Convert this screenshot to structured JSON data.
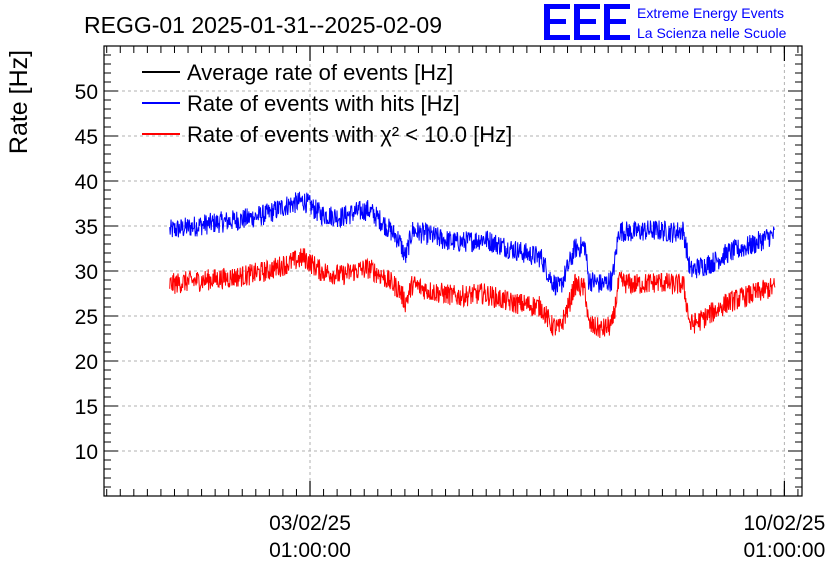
{
  "header": {
    "title": "REGG-01 2025-01-31--2025-02-09",
    "logo": {
      "mark": "EEE",
      "line1": "Extreme Energy Events",
      "line2": "La Scienza nelle Scuole",
      "color": "#0000ff"
    }
  },
  "chart_data": {
    "type": "line",
    "title": "REGG-01 2025-01-31--2025-02-09",
    "xlabel": "",
    "ylabel": "Rate [Hz]",
    "ylim": [
      5,
      55
    ],
    "yticks": [
      10,
      15,
      20,
      25,
      30,
      35,
      40,
      45,
      50
    ],
    "xlim": [
      0,
      10.3
    ],
    "xunit": "days since 2025-01-31 00:00",
    "xticks": [
      {
        "x": 3.04,
        "date": "03/02/25",
        "time": "01:00:00"
      },
      {
        "x": 10.04,
        "date": "10/02/25",
        "time": "01:00:00"
      }
    ],
    "grid": true,
    "legend_position": "top-left",
    "series": [
      {
        "name": "Average rate of events [Hz]",
        "color": "#000000",
        "points": []
      },
      {
        "name": "Rate of events with hits [Hz]",
        "color": "#0000ff",
        "noise": 1.2,
        "points": [
          [
            0.97,
            34.5
          ],
          [
            1.2,
            34.8
          ],
          [
            1.5,
            35.2
          ],
          [
            1.8,
            35.5
          ],
          [
            2.1,
            35.8
          ],
          [
            2.4,
            36.3
          ],
          [
            2.7,
            37.3
          ],
          [
            2.95,
            37.8
          ],
          [
            3.2,
            36.3
          ],
          [
            3.5,
            36.0
          ],
          [
            3.7,
            36.5
          ],
          [
            3.9,
            36.8
          ],
          [
            4.1,
            35.5
          ],
          [
            4.35,
            33.5
          ],
          [
            4.45,
            31.5
          ],
          [
            4.55,
            34.5
          ],
          [
            4.8,
            34.0
          ],
          [
            5.0,
            33.5
          ],
          [
            5.2,
            33.2
          ],
          [
            5.4,
            33.3
          ],
          [
            5.6,
            33.6
          ],
          [
            5.8,
            33.0
          ],
          [
            6.0,
            32.5
          ],
          [
            6.2,
            32.0
          ],
          [
            6.45,
            31.5
          ],
          [
            6.6,
            29.0
          ],
          [
            6.72,
            28.0
          ],
          [
            6.85,
            30.5
          ],
          [
            6.95,
            32.5
          ],
          [
            7.1,
            32.8
          ],
          [
            7.15,
            29.0
          ],
          [
            7.35,
            28.5
          ],
          [
            7.5,
            29.0
          ],
          [
            7.6,
            34.5
          ],
          [
            7.8,
            34.3
          ],
          [
            8.0,
            34.5
          ],
          [
            8.2,
            34.5
          ],
          [
            8.4,
            34.3
          ],
          [
            8.55,
            34.5
          ],
          [
            8.65,
            30.0
          ],
          [
            8.8,
            30.5
          ],
          [
            9.0,
            31.0
          ],
          [
            9.2,
            32.0
          ],
          [
            9.4,
            32.5
          ],
          [
            9.6,
            33.0
          ],
          [
            9.8,
            33.8
          ],
          [
            9.9,
            34.0
          ]
        ]
      },
      {
        "name": "Rate of events with χ² < 10.0 [Hz]",
        "color": "#ff0000",
        "noise": 1.2,
        "points": [
          [
            0.97,
            28.5
          ],
          [
            1.2,
            28.8
          ],
          [
            1.5,
            29.0
          ],
          [
            1.8,
            29.2
          ],
          [
            2.1,
            29.5
          ],
          [
            2.4,
            30.0
          ],
          [
            2.7,
            30.8
          ],
          [
            2.95,
            31.5
          ],
          [
            3.2,
            30.0
          ],
          [
            3.5,
            29.5
          ],
          [
            3.7,
            30.0
          ],
          [
            3.9,
            30.3
          ],
          [
            4.1,
            29.5
          ],
          [
            4.35,
            28.0
          ],
          [
            4.45,
            26.5
          ],
          [
            4.55,
            28.5
          ],
          [
            4.8,
            27.8
          ],
          [
            5.0,
            27.5
          ],
          [
            5.2,
            27.2
          ],
          [
            5.4,
            27.3
          ],
          [
            5.6,
            27.5
          ],
          [
            5.8,
            27.0
          ],
          [
            6.0,
            26.5
          ],
          [
            6.2,
            26.3
          ],
          [
            6.45,
            26.0
          ],
          [
            6.6,
            24.0
          ],
          [
            6.72,
            23.5
          ],
          [
            6.85,
            26.0
          ],
          [
            6.95,
            28.5
          ],
          [
            7.1,
            28.0
          ],
          [
            7.15,
            24.0
          ],
          [
            7.35,
            23.5
          ],
          [
            7.5,
            24.0
          ],
          [
            7.6,
            28.8
          ],
          [
            7.8,
            28.5
          ],
          [
            8.0,
            28.6
          ],
          [
            8.2,
            28.8
          ],
          [
            8.4,
            28.5
          ],
          [
            8.55,
            28.5
          ],
          [
            8.65,
            24.0
          ],
          [
            8.8,
            24.5
          ],
          [
            9.0,
            25.5
          ],
          [
            9.2,
            26.5
          ],
          [
            9.4,
            27.0
          ],
          [
            9.6,
            27.5
          ],
          [
            9.8,
            28.0
          ],
          [
            9.9,
            28.2
          ]
        ]
      }
    ]
  }
}
